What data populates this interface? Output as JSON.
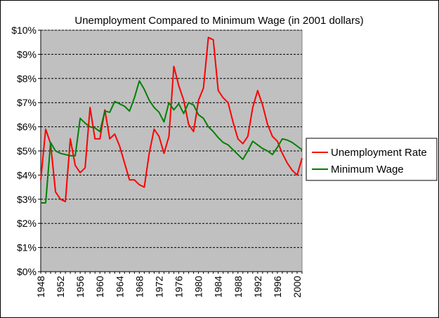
{
  "chart_data": {
    "type": "line",
    "title": "Unemployment Compared to Minimum Wage (in 2001 dollars)",
    "xlabel": "",
    "ylabel": "",
    "xlim": [
      1948,
      2001
    ],
    "ylim": [
      0,
      10
    ],
    "x_ticks": [
      1948,
      1952,
      1956,
      1960,
      1964,
      1968,
      1972,
      1976,
      1980,
      1984,
      1988,
      1992,
      1996,
      2000
    ],
    "y_ticks": [
      0,
      1,
      2,
      3,
      4,
      5,
      6,
      7,
      8,
      9,
      10
    ],
    "y_tick_labels": [
      "$0%",
      "$1%",
      "$2%",
      "$3%",
      "$4%",
      "$5%",
      "$6%",
      "$7%",
      "$8%",
      "$9%",
      "$10%"
    ],
    "grid": "horizontal dashed",
    "plot_background": "#c0c0c0",
    "legend_position": "right",
    "series": [
      {
        "name": "Unemployment Rate",
        "color": "#ff0000",
        "points": [
          [
            1948,
            3.8
          ],
          [
            1949,
            5.9
          ],
          [
            1950,
            5.3
          ],
          [
            1951,
            3.3
          ],
          [
            1952,
            3.0
          ],
          [
            1953,
            2.9
          ],
          [
            1954,
            5.5
          ],
          [
            1955,
            4.4
          ],
          [
            1956,
            4.1
          ],
          [
            1957,
            4.3
          ],
          [
            1958,
            6.8
          ],
          [
            1959,
            5.5
          ],
          [
            1960,
            5.5
          ],
          [
            1961,
            6.7
          ],
          [
            1962,
            5.5
          ],
          [
            1963,
            5.7
          ],
          [
            1964,
            5.2
          ],
          [
            1965,
            4.5
          ],
          [
            1966,
            3.8
          ],
          [
            1967,
            3.8
          ],
          [
            1968,
            3.6
          ],
          [
            1969,
            3.5
          ],
          [
            1970,
            4.9
          ],
          [
            1971,
            5.9
          ],
          [
            1972,
            5.6
          ],
          [
            1973,
            4.9
          ],
          [
            1974,
            5.6
          ],
          [
            1975,
            8.5
          ],
          [
            1976,
            7.7
          ],
          [
            1977,
            7.1
          ],
          [
            1978,
            6.1
          ],
          [
            1979,
            5.8
          ],
          [
            1980,
            7.1
          ],
          [
            1981,
            7.6
          ],
          [
            1982,
            9.7
          ],
          [
            1983,
            9.6
          ],
          [
            1984,
            7.5
          ],
          [
            1985,
            7.2
          ],
          [
            1986,
            7.0
          ],
          [
            1987,
            6.2
          ],
          [
            1988,
            5.5
          ],
          [
            1989,
            5.3
          ],
          [
            1990,
            5.6
          ],
          [
            1991,
            6.8
          ],
          [
            1992,
            7.5
          ],
          [
            1993,
            6.9
          ],
          [
            1994,
            6.1
          ],
          [
            1995,
            5.6
          ],
          [
            1996,
            5.4
          ],
          [
            1997,
            4.9
          ],
          [
            1998,
            4.5
          ],
          [
            1999,
            4.2
          ],
          [
            2000,
            4.0
          ],
          [
            2001,
            4.7
          ]
        ]
      },
      {
        "name": "Minimum Wage",
        "color": "#008000",
        "points": [
          [
            1948,
            2.85
          ],
          [
            1949,
            2.85
          ],
          [
            1950,
            5.35
          ],
          [
            1951,
            5.0
          ],
          [
            1952,
            4.9
          ],
          [
            1953,
            4.85
          ],
          [
            1954,
            4.8
          ],
          [
            1955,
            4.8
          ],
          [
            1956,
            6.35
          ],
          [
            1957,
            6.15
          ],
          [
            1958,
            6.0
          ],
          [
            1959,
            5.95
          ],
          [
            1960,
            5.8
          ],
          [
            1961,
            6.65
          ],
          [
            1962,
            6.6
          ],
          [
            1963,
            7.05
          ],
          [
            1964,
            6.95
          ],
          [
            1965,
            6.85
          ],
          [
            1966,
            6.65
          ],
          [
            1967,
            7.2
          ],
          [
            1968,
            7.9
          ],
          [
            1969,
            7.55
          ],
          [
            1970,
            7.1
          ],
          [
            1971,
            6.8
          ],
          [
            1972,
            6.6
          ],
          [
            1973,
            6.2
          ],
          [
            1974,
            7.0
          ],
          [
            1975,
            6.7
          ],
          [
            1976,
            6.95
          ],
          [
            1977,
            6.55
          ],
          [
            1978,
            7.0
          ],
          [
            1979,
            6.9
          ],
          [
            1980,
            6.5
          ],
          [
            1981,
            6.35
          ],
          [
            1982,
            6.0
          ],
          [
            1983,
            5.8
          ],
          [
            1984,
            5.55
          ],
          [
            1985,
            5.35
          ],
          [
            1986,
            5.25
          ],
          [
            1987,
            5.05
          ],
          [
            1988,
            4.85
          ],
          [
            1989,
            4.65
          ],
          [
            1990,
            5.0
          ],
          [
            1991,
            5.4
          ],
          [
            1992,
            5.25
          ],
          [
            1993,
            5.1
          ],
          [
            1994,
            5.0
          ],
          [
            1995,
            4.85
          ],
          [
            1996,
            5.15
          ],
          [
            1997,
            5.5
          ],
          [
            1998,
            5.45
          ],
          [
            1999,
            5.35
          ],
          [
            2000,
            5.2
          ],
          [
            2001,
            5.05
          ]
        ]
      }
    ]
  }
}
